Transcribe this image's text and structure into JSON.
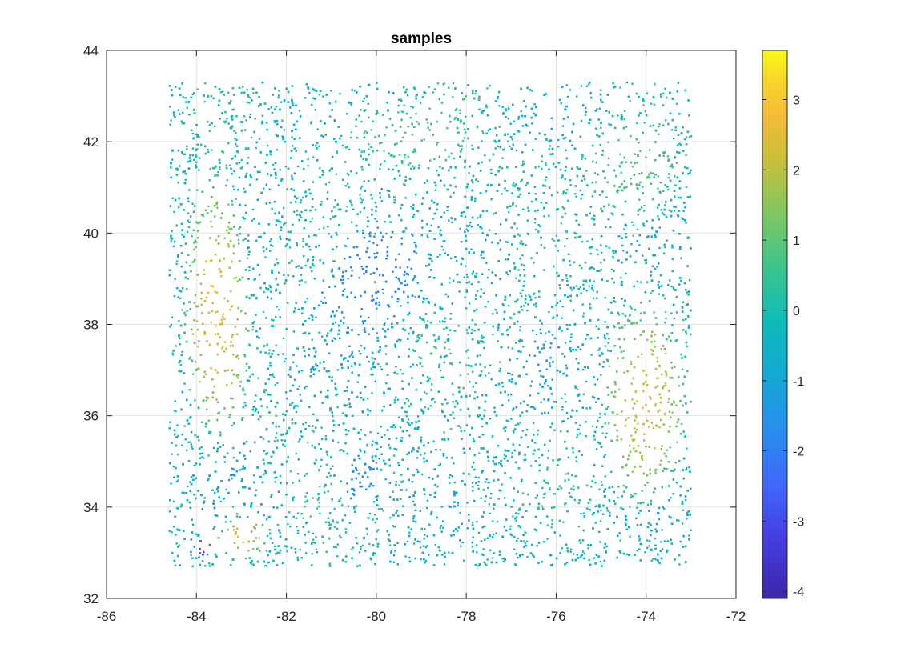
{
  "chart_data": {
    "type": "scatter",
    "title": "samples",
    "xlabel": "",
    "ylabel": "",
    "xlim": [
      -86,
      -72
    ],
    "ylim": [
      32,
      44
    ],
    "x_ticks": [
      -86,
      -84,
      -82,
      -80,
      -78,
      -76,
      -74,
      -72
    ],
    "y_ticks": [
      32,
      34,
      36,
      38,
      40,
      42,
      44
    ],
    "grid": true,
    "colormap": "parula",
    "colorbar": {
      "range": [
        -4.1,
        3.7
      ],
      "ticks": [
        -4,
        -3,
        -2,
        -1,
        0,
        1,
        2,
        3
      ]
    },
    "sample_extent": {
      "x": [
        -84.6,
        -73.0
      ],
      "y": [
        32.7,
        43.3
      ]
    },
    "points_note": "dense field of ~tens of thousands of sampled points colored by value",
    "regions": [
      {
        "label": "high",
        "x": [
          -84.3,
          -82.8
        ],
        "y": [
          35.5,
          41.5
        ],
        "value": 2.5
      },
      {
        "label": "high",
        "x": [
          -75.0,
          -73.1
        ],
        "y": [
          33.8,
          38.5
        ],
        "value": 2.3
      },
      {
        "label": "high",
        "x": [
          -83.6,
          -82.4
        ],
        "y": [
          32.8,
          33.9
        ],
        "value": 2.3
      },
      {
        "label": "moderate",
        "x": [
          -81.0,
          -77.5
        ],
        "y": [
          41.3,
          43.0
        ],
        "value": 0.8
      },
      {
        "label": "moderate",
        "x": [
          -75.5,
          -73.1
        ],
        "y": [
          40.0,
          42.5
        ],
        "value": 0.8
      },
      {
        "label": "low",
        "x": [
          -81.5,
          -78.8
        ],
        "y": [
          37.5,
          40.5
        ],
        "value": -2.0
      },
      {
        "label": "low",
        "x": [
          -81.0,
          -79.7
        ],
        "y": [
          33.8,
          35.5
        ],
        "value": -1.8
      },
      {
        "label": "very-low",
        "x": [
          -84.1,
          -83.6
        ],
        "y": [
          32.8,
          33.4
        ],
        "value": -3.3
      }
    ]
  }
}
